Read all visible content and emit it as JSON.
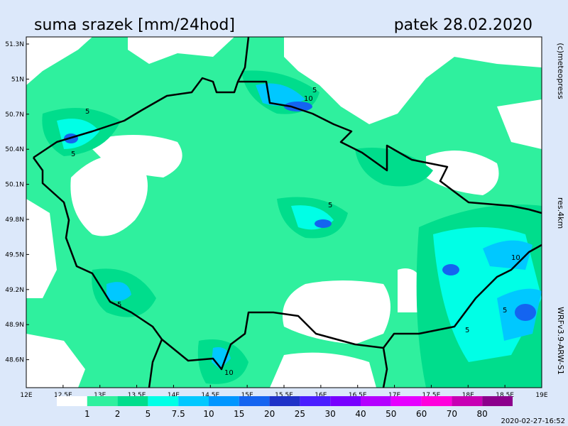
{
  "header": {
    "title": "suma srazek [mm/24hod]",
    "date": "patek 28.02.2020"
  },
  "side": {
    "copyright": "(c)meteopress",
    "resolution": "res.4km",
    "model": "WRFv3.9-ARW-S1"
  },
  "footer": {
    "timestamp": "2020-02-27-16:52"
  },
  "axes": {
    "x_labels": [
      "12E",
      "12.5E",
      "13E",
      "13.5E",
      "14E",
      "14.5E",
      "15E",
      "15.5E",
      "16E",
      "16.5E",
      "17E",
      "17.5E",
      "18E",
      "18.5E",
      "19E"
    ],
    "y_labels": [
      "51.3N",
      "51N",
      "50.7N",
      "50.4N",
      "50.1N",
      "49.8N",
      "49.5N",
      "49.2N",
      "48.9N",
      "48.6N"
    ]
  },
  "contour_labels": [
    "5",
    "10",
    "5",
    "5",
    "5",
    "5",
    "10",
    "5",
    "10",
    "5"
  ],
  "legend": {
    "levels": [
      "1",
      "2",
      "5",
      "7.5",
      "10",
      "15",
      "20",
      "25",
      "30",
      "40",
      "50",
      "60",
      "70",
      "80"
    ],
    "colors": [
      "#ffffff",
      "#2ff09e",
      "#00dd8c",
      "#00ffe6",
      "#00c8ff",
      "#0096ff",
      "#1464f0",
      "#1e32c8",
      "#4b1eff",
      "#7800ff",
      "#b400ff",
      "#e600ff",
      "#ff00dc",
      "#c800b4",
      "#8c008c"
    ]
  }
}
